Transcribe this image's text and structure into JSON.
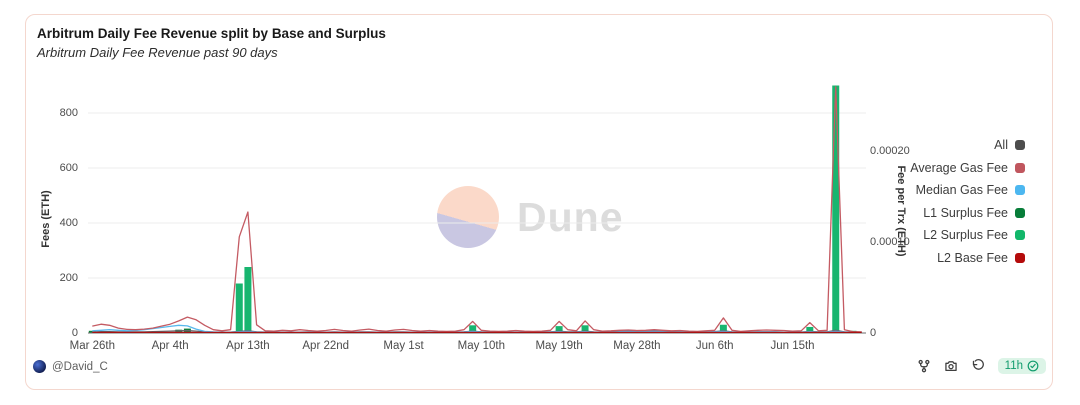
{
  "card": {
    "title": "Arbitrum Daily Fee Revenue split by Base and Surplus",
    "subtitle": "Arbitrum Daily Fee Revenue past 90 days",
    "border_color": "#f4d7ce"
  },
  "watermark": {
    "text": "Dune",
    "circle_top_color": "#fbd9c9",
    "circle_bottom_color": "#c9c7e2"
  },
  "footer": {
    "author": "@David_C",
    "actions": [
      "fork-icon",
      "camera-icon",
      "refresh-icon"
    ],
    "badge": {
      "text": "11h",
      "icon": "check-circle-icon",
      "bg": "#dcf4e7",
      "color": "#119c6d"
    }
  },
  "chart_data": {
    "type": "bar",
    "title": "Arbitrum Daily Fee Revenue split by Base and Surplus",
    "subtitle": "Arbitrum Daily Fee Revenue past 90 days",
    "ylabel_left": "Fees (ETH)",
    "ylabel_right": "Fee per Trx (ETH)",
    "grid": true,
    "legend_position": "right",
    "y_left_ticks": [
      0,
      200,
      400,
      600,
      800
    ],
    "y_left_max": 900,
    "y_right_ticks": [
      {
        "label": "0",
        "value": 0
      },
      {
        "label": "0.00010",
        "value": 0.0001
      },
      {
        "label": "0.00020",
        "value": 0.0002
      }
    ],
    "x_tick_labels": [
      "Mar 26th",
      "Apr 4th",
      "Apr 13th",
      "Apr 22nd",
      "May 1st",
      "May 10th",
      "May 19th",
      "May 28th",
      "Jun 6th",
      "Jun 15th"
    ],
    "x_tick_indices": [
      0,
      9,
      18,
      27,
      36,
      45,
      54,
      63,
      72,
      81
    ],
    "days": 90,
    "legend": [
      {
        "label": "All",
        "color": "#4d4d4d"
      },
      {
        "label": "Average Gas Fee",
        "color": "#c0565e"
      },
      {
        "label": "Median Gas Fee",
        "color": "#4cb7f0"
      },
      {
        "label": "L1 Surplus Fee",
        "color": "#077d39"
      },
      {
        "label": "L2 Surplus Fee",
        "color": "#12b76a"
      },
      {
        "label": "L2 Base Fee",
        "color": "#b40b0b"
      }
    ],
    "series": [
      {
        "name": "All",
        "type": "line",
        "color": "#60656b",
        "values": [
          4,
          5,
          5,
          4,
          4,
          4,
          4,
          5,
          6,
          7,
          8,
          9,
          7,
          4,
          3,
          3,
          3,
          6,
          8,
          4,
          3,
          3,
          3,
          3,
          3,
          4,
          3,
          3,
          4,
          3,
          3,
          4,
          4,
          3,
          3,
          4,
          4,
          3,
          3,
          3,
          3,
          3,
          3,
          4,
          7,
          4,
          3,
          3,
          3,
          3,
          3,
          3,
          3,
          4,
          7,
          4,
          4,
          7,
          4,
          3,
          4,
          6,
          7,
          7,
          6,
          7,
          6,
          5,
          4,
          3,
          3,
          3,
          5,
          8,
          4,
          3,
          3,
          4,
          4,
          4,
          3,
          3,
          3,
          6,
          4,
          4,
          10,
          4,
          3,
          3
        ]
      },
      {
        "name": "Median Gas Fee",
        "type": "line",
        "color": "#58b8ec",
        "values": [
          8,
          10,
          12,
          10,
          8,
          9,
          12,
          16,
          20,
          24,
          28,
          26,
          14,
          6,
          4,
          3,
          3,
          5,
          6,
          4,
          3,
          3,
          3,
          3,
          3,
          3,
          3,
          3,
          3,
          3,
          3,
          3,
          3,
          3,
          3,
          3,
          3,
          3,
          3,
          3,
          3,
          3,
          3,
          4,
          6,
          4,
          3,
          3,
          3,
          3,
          3,
          3,
          3,
          4,
          5,
          3,
          4,
          5,
          3,
          3,
          4,
          5,
          6,
          6,
          5,
          6,
          5,
          4,
          4,
          3,
          3,
          3,
          5,
          6,
          4,
          3,
          3,
          4,
          4,
          4,
          3,
          3,
          3,
          5,
          3,
          4,
          6,
          4,
          3,
          3
        ]
      },
      {
        "name": "L1 Surplus Fee",
        "type": "bar",
        "color": "#0e8038",
        "values": [
          8,
          0,
          0,
          0,
          0,
          0,
          0,
          0,
          0,
          0,
          12,
          16,
          0,
          0,
          0,
          0,
          0,
          0,
          0,
          0,
          0,
          0,
          0,
          0,
          0,
          0,
          0,
          0,
          0,
          0,
          0,
          0,
          0,
          0,
          0,
          0,
          0,
          0,
          0,
          0,
          0,
          0,
          0,
          0,
          0,
          0,
          0,
          0,
          0,
          0,
          0,
          0,
          0,
          0,
          0,
          0,
          0,
          0,
          0,
          0,
          0,
          0,
          0,
          0,
          0,
          0,
          0,
          0,
          0,
          0,
          0,
          0,
          0,
          0,
          0,
          0,
          0,
          0,
          0,
          0,
          0,
          0,
          0,
          0,
          0,
          0,
          0,
          0,
          0,
          0
        ]
      },
      {
        "name": "L2 Surplus Fee",
        "type": "bar",
        "color": "#18b56f",
        "values": [
          0,
          0,
          0,
          0,
          0,
          0,
          0,
          0,
          0,
          0,
          0,
          0,
          0,
          0,
          0,
          0,
          0,
          180,
          240,
          0,
          0,
          0,
          0,
          0,
          0,
          0,
          0,
          0,
          0,
          0,
          0,
          0,
          0,
          0,
          0,
          0,
          0,
          0,
          0,
          0,
          0,
          0,
          0,
          0,
          28,
          0,
          0,
          0,
          0,
          0,
          0,
          0,
          0,
          0,
          25,
          0,
          0,
          28,
          0,
          0,
          0,
          0,
          0,
          0,
          0,
          0,
          0,
          0,
          0,
          0,
          0,
          0,
          0,
          30,
          0,
          0,
          0,
          0,
          0,
          0,
          0,
          0,
          0,
          22,
          0,
          0,
          900,
          0,
          8,
          0
        ]
      },
      {
        "name": "Average Gas Fee",
        "type": "line",
        "color": "#c45b63",
        "values": [
          25,
          32,
          28,
          18,
          13,
          12,
          14,
          18,
          25,
          32,
          44,
          58,
          48,
          28,
          12,
          8,
          12,
          350,
          440,
          30,
          8,
          7,
          10,
          8,
          12,
          9,
          7,
          9,
          13,
          9,
          7,
          11,
          14,
          9,
          7,
          11,
          13,
          9,
          7,
          9,
          7,
          6,
          7,
          12,
          42,
          10,
          7,
          6,
          7,
          9,
          7,
          6,
          7,
          10,
          42,
          12,
          8,
          44,
          12,
          7,
          8,
          10,
          11,
          9,
          10,
          12,
          10,
          8,
          9,
          7,
          6,
          8,
          10,
          55,
          10,
          6,
          8,
          10,
          11,
          10,
          9,
          7,
          8,
          38,
          8,
          10,
          895,
          12,
          5,
          4
        ]
      },
      {
        "name": "L2 Base Fee",
        "type": "line",
        "color": "#a81212",
        "values": [
          2,
          2,
          2,
          2,
          2,
          2,
          2,
          2,
          2,
          2,
          2,
          2,
          2,
          2,
          2,
          2,
          2,
          2,
          2,
          2,
          2,
          2,
          2,
          2,
          2,
          2,
          2,
          2,
          2,
          2,
          2,
          2,
          2,
          2,
          2,
          2,
          2,
          2,
          2,
          2,
          2,
          2,
          2,
          2,
          2,
          2,
          2,
          2,
          2,
          2,
          2,
          2,
          2,
          2,
          2,
          2,
          2,
          2,
          2,
          2,
          2,
          2,
          2,
          2,
          2,
          2,
          2,
          2,
          2,
          2,
          2,
          2,
          2,
          2,
          2,
          2,
          2,
          2,
          2,
          2,
          2,
          2,
          2,
          2,
          2,
          2,
          2,
          2,
          2,
          2
        ]
      }
    ]
  }
}
